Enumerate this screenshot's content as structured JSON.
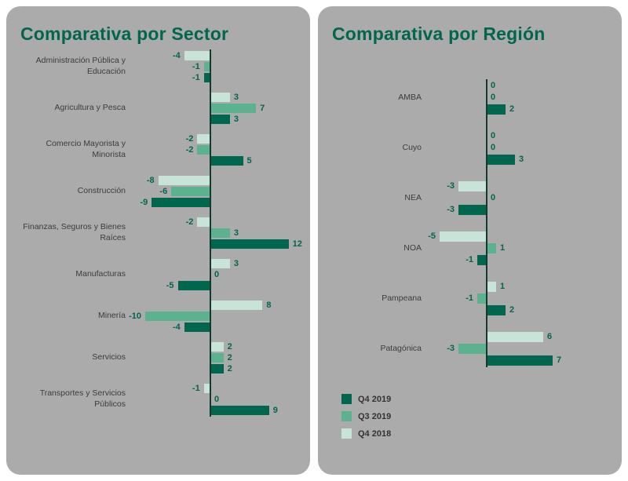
{
  "colors": {
    "q4_2019": "#00664e",
    "q3_2019": "#5cb18e",
    "q4_2018": "#c8e3d7",
    "card_bg": "#ababab",
    "title": "#00664e",
    "axis": "#123a2f",
    "category_label": "#3c3c3c",
    "value_label": "#00664e"
  },
  "panels": [
    {
      "title": "Comparativa por Sector"
    },
    {
      "title": "Comparativa por Región"
    }
  ],
  "legend": [
    {
      "label": "Q4 2019",
      "color_key": "q4_2019"
    },
    {
      "label": "Q3 2019",
      "color_key": "q3_2019"
    },
    {
      "label": "Q4 2018",
      "color_key": "q4_2018"
    }
  ],
  "chart_data": [
    {
      "type": "bar",
      "orientation": "horizontal",
      "title": "Comparativa por Sector",
      "xlim": [
        -13,
        13
      ],
      "grid": false,
      "categories": [
        "Administración Pública y Educación",
        "Agricultura y Pesca",
        "Comercio Mayorista y Minorista",
        "Construcción",
        "Finanzas, Seguros y Bienes Raíces",
        "Manufacturas",
        "Minería",
        "Servicios",
        "Transportes y Servicios Públicos"
      ],
      "series": [
        {
          "name": "Q4 2018",
          "color_key": "q4_2018",
          "values": [
            -4,
            3,
            -2,
            -8,
            -2,
            3,
            8,
            2,
            -1
          ]
        },
        {
          "name": "Q3 2019",
          "color_key": "q3_2019",
          "values": [
            -1,
            7,
            -2,
            -6,
            3,
            0,
            -10,
            2,
            0
          ]
        },
        {
          "name": "Q4 2019",
          "color_key": "q4_2019",
          "values": [
            -1,
            3,
            5,
            -9,
            12,
            -5,
            -4,
            2,
            9
          ]
        }
      ]
    },
    {
      "type": "bar",
      "orientation": "horizontal",
      "title": "Comparativa por Región",
      "xlim": [
        -6,
        8
      ],
      "grid": false,
      "categories": [
        "AMBA",
        "Cuyo",
        "NEA",
        "NOA",
        "Pampeana",
        "Patagónica"
      ],
      "series": [
        {
          "name": "Q4 2018",
          "color_key": "q4_2018",
          "values": [
            0,
            0,
            -3,
            -5,
            1,
            6
          ]
        },
        {
          "name": "Q3 2019",
          "color_key": "q3_2019",
          "values": [
            0,
            0,
            0,
            1,
            -1,
            -3
          ]
        },
        {
          "name": "Q4 2019",
          "color_key": "q4_2019",
          "values": [
            2,
            3,
            -3,
            -1,
            2,
            7
          ]
        }
      ]
    }
  ]
}
